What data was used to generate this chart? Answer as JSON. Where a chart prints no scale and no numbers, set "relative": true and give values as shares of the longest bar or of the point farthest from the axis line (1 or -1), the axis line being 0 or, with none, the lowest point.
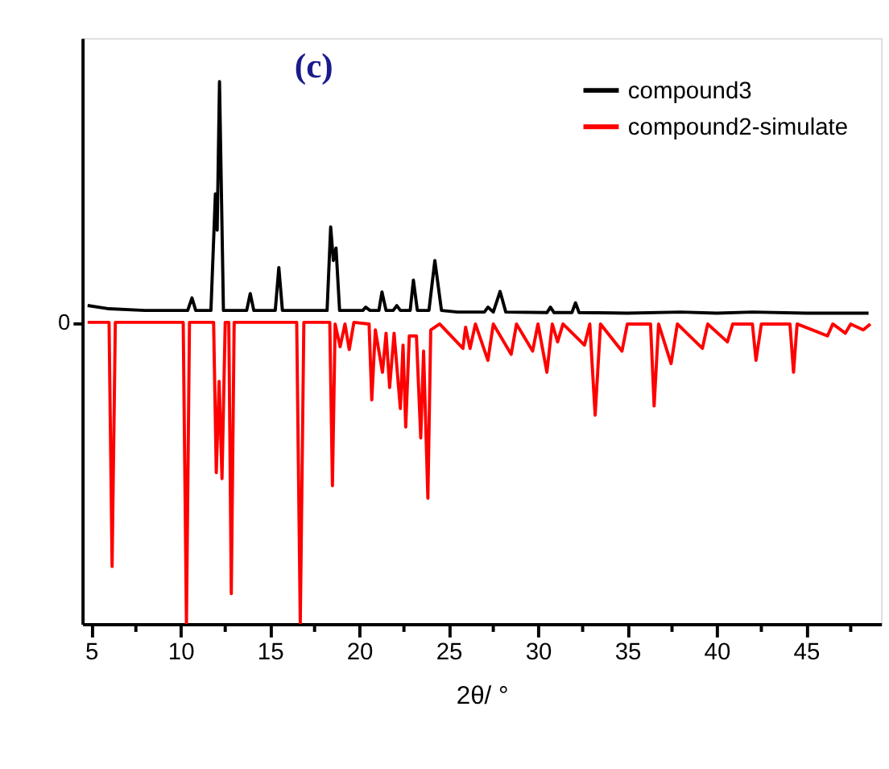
{
  "chart_data": {
    "type": "line",
    "title": "(c)",
    "xlabel": "2θ/ °",
    "relative": true,
    "legend": "top right",
    "grid": false,
    "marker": "none",
    "line_style": "solid",
    "xlim": [
      4.5,
      49.2
    ],
    "xticks": [
      5,
      {
        "value": 7.5,
        "label": null
      },
      10,
      {
        "value": 12.5,
        "label": null
      },
      15,
      {
        "value": 17.5,
        "label": null
      },
      20,
      {
        "value": 22.5,
        "label": null
      },
      25,
      {
        "value": 27.5,
        "label": null
      },
      30,
      {
        "value": 32.5,
        "label": null
      },
      35,
      {
        "value": 37.5,
        "label": null
      },
      40,
      {
        "value": 42.5,
        "label": null
      },
      45,
      {
        "value": 47.5,
        "label": null
      }
    ],
    "annotations": [
      "0"
    ],
    "series": [
      {
        "name": "compound3",
        "color": "#000000",
        "x": [
          4.8,
          6,
          8,
          10.4,
          10.64,
          10.85,
          11.7,
          11.95,
          12.05,
          12.18,
          12.4,
          13.7,
          13.9,
          14.1,
          15.3,
          15.5,
          15.7,
          18.2,
          18.4,
          18.55,
          18.7,
          18.9,
          20.2,
          20.36,
          20.6,
          21.1,
          21.27,
          21.5,
          21.9,
          22.1,
          22.3,
          22.85,
          23.03,
          23.25,
          23.9,
          24.23,
          24.6,
          25.5,
          27,
          27.2,
          27.5,
          27.88,
          28.2,
          30.5,
          30.7,
          30.9,
          31.9,
          32.1,
          32.3,
          35,
          38,
          40,
          42,
          45,
          48.5
        ],
        "values": [
          0.587,
          0.581,
          0.578,
          0.578,
          0.601,
          0.578,
          0.578,
          0.793,
          0.726,
          1,
          0.578,
          0.578,
          0.609,
          0.578,
          0.578,
          0.657,
          0.578,
          0.578,
          0.732,
          0.67,
          0.693,
          0.578,
          0.578,
          0.584,
          0.578,
          0.578,
          0.612,
          0.578,
          0.578,
          0.587,
          0.578,
          0.578,
          0.634,
          0.578,
          0.578,
          0.67,
          0.578,
          0.575,
          0.575,
          0.584,
          0.575,
          0.613,
          0.575,
          0.574,
          0.584,
          0.574,
          0.574,
          0.592,
          0.574,
          0.573,
          0.575,
          0.573,
          0.575,
          0.573,
          0.573
        ]
      },
      {
        "name": "compound2-simulate",
        "color": "#ff0000",
        "x": [
          4.8,
          6.0,
          6.17,
          6.35,
          10.15,
          10.33,
          10.5,
          11.85,
          12.0,
          12.16,
          12.32,
          12.5,
          12.7,
          12.84,
          13.0,
          16.5,
          16.7,
          16.9,
          18.35,
          18.5,
          18.65,
          18.93,
          19.2,
          19.44,
          19.7,
          20.55,
          20.7,
          20.9,
          21.3,
          21.5,
          21.7,
          21.95,
          22.3,
          22.45,
          22.6,
          22.8,
          23.2,
          23.44,
          23.6,
          23.84,
          24.0,
          24.5,
          25.8,
          25.95,
          26.2,
          26.5,
          27.2,
          27.5,
          28.5,
          28.8,
          29.7,
          30.0,
          30.5,
          30.8,
          31.1,
          31.4,
          32.6,
          32.9,
          33.2,
          33.5,
          34.7,
          35.0,
          36.3,
          36.5,
          36.75,
          37.45,
          37.8,
          39.2,
          39.5,
          40.6,
          40.9,
          42.0,
          42.2,
          42.5,
          44.1,
          44.3,
          44.5,
          46.2,
          46.5,
          47.2,
          47.5,
          48.2,
          48.6
        ],
        "values": [
          0.556,
          0.556,
          0.106,
          0.556,
          0.556,
          0,
          0.556,
          0.556,
          0.279,
          0.447,
          0.268,
          0.556,
          0.556,
          0.056,
          0.556,
          0.556,
          0,
          0.556,
          0.556,
          0.255,
          0.553,
          0.511,
          0.553,
          0.506,
          0.556,
          0.553,
          0.413,
          0.542,
          0.464,
          0.536,
          0.436,
          0.536,
          0.397,
          0.514,
          0.363,
          0.531,
          0.531,
          0.343,
          0.503,
          0.232,
          0.542,
          0.553,
          0.508,
          0.547,
          0.508,
          0.553,
          0.486,
          0.553,
          0.497,
          0.553,
          0.503,
          0.553,
          0.464,
          0.553,
          0.52,
          0.553,
          0.514,
          0.553,
          0.385,
          0.553,
          0.503,
          0.553,
          0.553,
          0.402,
          0.553,
          0.48,
          0.553,
          0.508,
          0.553,
          0.52,
          0.553,
          0.553,
          0.486,
          0.553,
          0.553,
          0.464,
          0.553,
          0.531,
          0.553,
          0.536,
          0.553,
          0.542,
          0.553
        ]
      }
    ]
  }
}
